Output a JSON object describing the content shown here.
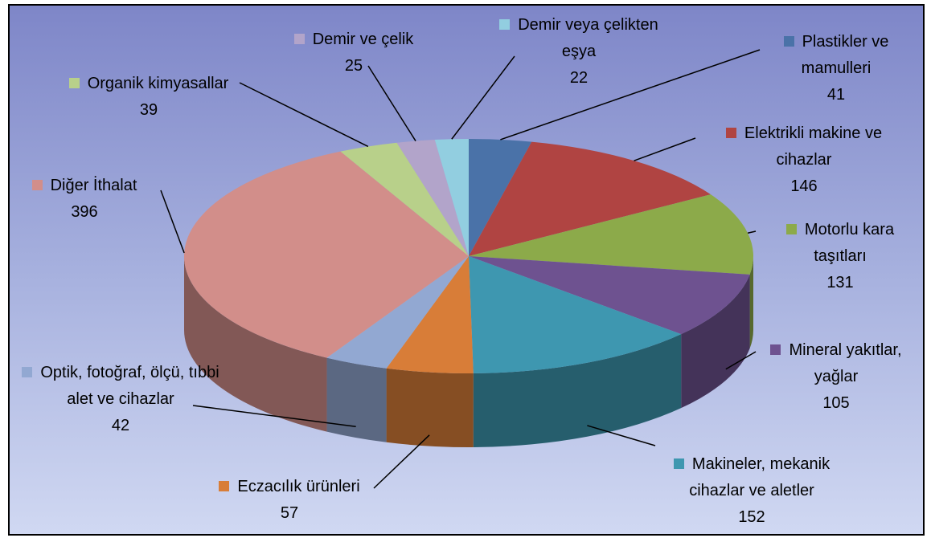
{
  "chart_data": {
    "type": "pie3d",
    "categories": [
      "Plastikler ve mamulleri",
      "Elektrikli makine ve cihazlar",
      "Motorlu kara taşıtları",
      "Mineral yakıtlar, yağlar",
      "Makineler, mekanik cihazlar ve aletler",
      "Eczacılık ürünleri",
      "Optik, fotoğraf, ölçü, tıbbi alet ve cihazlar",
      "Diğer İthalat",
      "Organik kimyasallar",
      "Demir ve çelik",
      "Demir veya çelikten eşya"
    ],
    "values": [
      41,
      146,
      131,
      105,
      152,
      57,
      42,
      396,
      39,
      25,
      22
    ],
    "colors": [
      "#4a72a8",
      "#b04442",
      "#8caa4a",
      "#6e5290",
      "#3e97b0",
      "#d87d38",
      "#92a8d2",
      "#d28e8a",
      "#b8d08a",
      "#b2a4ca",
      "#92cee0"
    ]
  }
}
